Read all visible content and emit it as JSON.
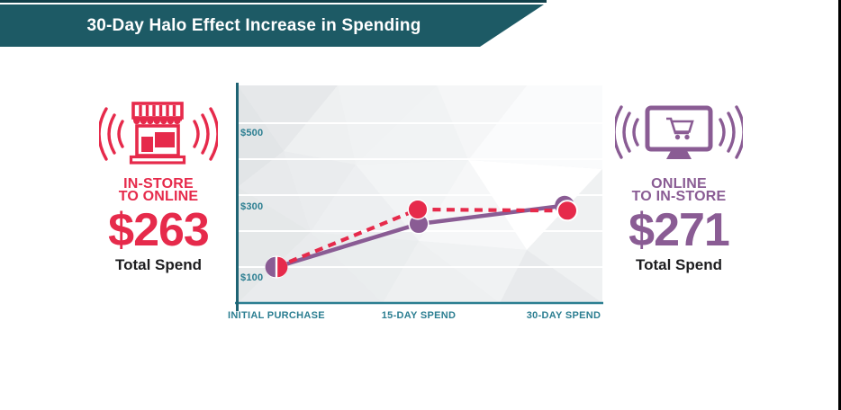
{
  "header": {
    "title": "30-Day Halo Effect Increase in Spending"
  },
  "left_panel": {
    "icon": "storefront-with-signal-waves-icon",
    "heading_line1": "IN-STORE",
    "heading_line2": "TO ONLINE",
    "amount": "$263",
    "caption": "Total Spend",
    "color": "#e62a4b"
  },
  "right_panel": {
    "icon": "monitor-with-cart-and-signal-waves-icon",
    "heading_line1": "ONLINE",
    "heading_line2": "TO IN-STORE",
    "amount": "$271",
    "caption": "Total Spend",
    "color": "#8a5c94"
  },
  "chart_data": {
    "type": "line",
    "title": "30-Day Halo Effect Increase in Spending",
    "categories": [
      "INITIAL PURCHASE",
      "15-DAY SPEND",
      "30-DAY SPEND"
    ],
    "series": [
      {
        "name": "In-store to online",
        "color": "#e62a4b",
        "line_style": "dashed",
        "values": [
          100,
          260,
          263
        ]
      },
      {
        "name": "Online to in-store",
        "color": "#8a5c94",
        "line_style": "solid",
        "values": [
          100,
          220,
          271
        ]
      }
    ],
    "xlabel": "",
    "ylabel": "",
    "ylim": [
      0,
      600
    ],
    "y_gridlines": [
      100,
      200,
      300,
      400,
      500
    ],
    "y_tick_labels_shown": [
      "$500",
      "$300",
      "$100"
    ],
    "legend": "none",
    "grid": "horizontal-white-on-gray",
    "background": "low-poly-light-gray"
  },
  "colors": {
    "banner_teal": "#1d5a65",
    "accent_line_teal": "#12404a",
    "axis_teal": "#2b7e91",
    "red": "#e62a4b",
    "purple": "#8a5c94",
    "text_dark": "#1d1d1f"
  }
}
